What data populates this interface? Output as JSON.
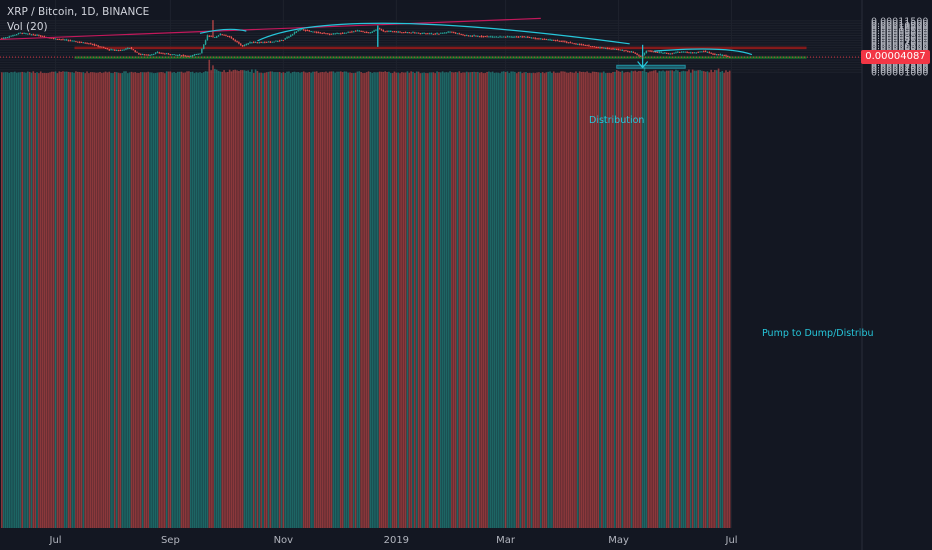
{
  "header": {
    "symbol_line": "XRP / Bitcoin, 1D, BINANCE",
    "volume_line": "Vol (20)"
  },
  "colors": {
    "background": "#131722",
    "grid": "#1e222d",
    "up": "#26a69a",
    "down": "#ef5350",
    "trendline": "#c2185b",
    "annotation": "#26c6da",
    "resistance_zone": "#8b1a1a",
    "support_zone": "#1b7a2a",
    "price_tag": "#f23645"
  },
  "last_price_label": "0.00004087",
  "annotations": {
    "distribution": "Distribution",
    "pump_to_dump": "Pump to Dump/Distribu"
  },
  "chart_data": {
    "type": "candlestick",
    "title": "XRP / Bitcoin, 1D, BINANCE",
    "xlabel": "",
    "ylabel": "",
    "ylim": [
      2.5e-07,
      0.00011775
    ],
    "grid": true,
    "x_ticks": [
      "Jul",
      "Sep",
      "Nov",
      "2019",
      "Mar",
      "May",
      "Jul"
    ],
    "y_ticks": [
      "0.00001000",
      "0.00001500",
      "0.00002000",
      "0.00002500",
      "0.00003000",
      "0.00003500",
      "0.00004000",
      "0.00004500",
      "0.00005000",
      "0.00005500",
      "0.00006000",
      "0.00006500",
      "0.00007000",
      "0.00007500",
      "0.00008000",
      "0.00008500",
      "0.00009000",
      "0.00009500",
      "0.00010000",
      "0.00010500",
      "0.00011000",
      "0.00011500"
    ],
    "price_anchors": [
      [
        "2018-06-03",
        8e-05
      ],
      [
        "2018-06-12",
        9.05e-05
      ],
      [
        "2018-06-20",
        8.6e-05
      ],
      [
        "2018-06-30",
        7.9e-05
      ],
      [
        "2018-07-10",
        7.4e-05
      ],
      [
        "2018-07-20",
        6.8e-05
      ],
      [
        "2018-07-30",
        5.6e-05
      ],
      [
        "2018-08-05",
        5.5e-05
      ],
      [
        "2018-08-10",
        6e-05
      ],
      [
        "2018-08-15",
        4.7e-05
      ],
      [
        "2018-08-20",
        4.5e-05
      ],
      [
        "2018-08-25",
        5e-05
      ],
      [
        "2018-09-05",
        4.5e-05
      ],
      [
        "2018-09-12",
        4.3e-05
      ],
      [
        "2018-09-17",
        4.9e-05
      ],
      [
        "2018-09-21",
        8.5e-05
      ],
      [
        "2018-09-25",
        8.1e-05
      ],
      [
        "2018-09-28",
        8.8e-05
      ],
      [
        "2018-10-03",
        8.2e-05
      ],
      [
        "2018-10-10",
        6.3e-05
      ],
      [
        "2018-10-14",
        7.1e-05
      ],
      [
        "2018-10-25",
        7.2e-05
      ],
      [
        "2018-11-01",
        7.6e-05
      ],
      [
        "2018-11-06",
        8.8e-05
      ],
      [
        "2018-11-10",
        9.8e-05
      ],
      [
        "2018-11-18",
        9.2e-05
      ],
      [
        "2018-11-26",
        8.8e-05
      ],
      [
        "2018-12-03",
        9e-05
      ],
      [
        "2018-12-10",
        9.5e-05
      ],
      [
        "2018-12-18",
        9.1e-05
      ],
      [
        "2018-12-22",
        9.9e-05
      ],
      [
        "2018-12-25",
        9.4e-05
      ],
      [
        "2019-01-10",
        9.1e-05
      ],
      [
        "2019-01-22",
        8.8e-05
      ],
      [
        "2019-01-30",
        9.3e-05
      ],
      [
        "2019-02-07",
        8.5e-05
      ],
      [
        "2019-02-20",
        8.3e-05
      ],
      [
        "2019-03-01",
        8.2e-05
      ],
      [
        "2019-03-10",
        8.3e-05
      ],
      [
        "2019-03-20",
        7.8e-05
      ],
      [
        "2019-03-30",
        7.4e-05
      ],
      [
        "2019-04-08",
        6.8e-05
      ],
      [
        "2019-04-18",
        6.2e-05
      ],
      [
        "2019-04-25",
        5.9e-05
      ],
      [
        "2019-05-01",
        5.6e-05
      ],
      [
        "2019-05-08",
        5.2e-05
      ],
      [
        "2019-05-13",
        4.2e-05
      ],
      [
        "2019-05-16",
        5.4e-05
      ],
      [
        "2019-05-22",
        5.1e-05
      ],
      [
        "2019-05-28",
        4.8e-05
      ],
      [
        "2019-06-03",
        5.2e-05
      ],
      [
        "2019-06-10",
        5e-05
      ],
      [
        "2019-06-16",
        5.3e-05
      ],
      [
        "2019-06-21",
        4.7e-05
      ],
      [
        "2019-06-26",
        4.5e-05
      ],
      [
        "2019-06-30",
        4.09e-05
      ]
    ],
    "wick_spikes": [
      [
        "2018-09-24",
        0.0001165,
        8.7e-05
      ],
      [
        "2018-12-22",
        0.000107,
        6.15e-05
      ]
    ],
    "volume_spikes": [
      [
        "2018-09-22",
        3.55e-05
      ],
      [
        "2018-09-24",
        2.4e-05
      ],
      [
        "2019-05-15",
        2e-05
      ],
      [
        "2019-06-24",
        1.75e-05
      ]
    ],
    "trendline": [
      [
        "2018-06-01",
        7.7e-05
      ],
      [
        "2019-03-20",
        0.00012
      ]
    ],
    "zones": [
      {
        "from": "2018-06-20",
        "to": "2019-08-15",
        "low": 5.82e-05,
        "high": 6.12e-05,
        "color": "resistance"
      },
      {
        "from": "2018-06-20",
        "to": "2019-08-15",
        "low": 3.88e-05,
        "high": 4.12e-05,
        "color": "support"
      }
    ],
    "drop_arrow": {
      "date": "2019-05-14",
      "from": 6.6e-05,
      "to": 1.95e-05
    },
    "volume_box": {
      "from": "2019-04-30",
      "to": "2019-06-06",
      "low": 1.8e-05,
      "high": 2.42e-05
    },
    "vertical_line": {
      "date": "2018-12-22",
      "from": 0.000105,
      "to": 6.2e-05
    },
    "curves": [
      [
        [
          "2018-09-17",
          8.95e-05
        ],
        [
          "2018-10-01",
          9.75e-05
        ],
        [
          "2018-10-12",
          9.4e-05
        ]
      ],
      [
        [
          "2018-10-18",
          7.4e-05
        ],
        [
          "2018-12-28",
          0.00011
        ],
        [
          "2019-05-07",
          6.8e-05
        ]
      ],
      [
        [
          "2019-05-20",
          5.3e-05
        ],
        [
          "2019-06-22",
          5.7e-05
        ],
        [
          "2019-07-12",
          4.6e-05
        ]
      ]
    ]
  }
}
